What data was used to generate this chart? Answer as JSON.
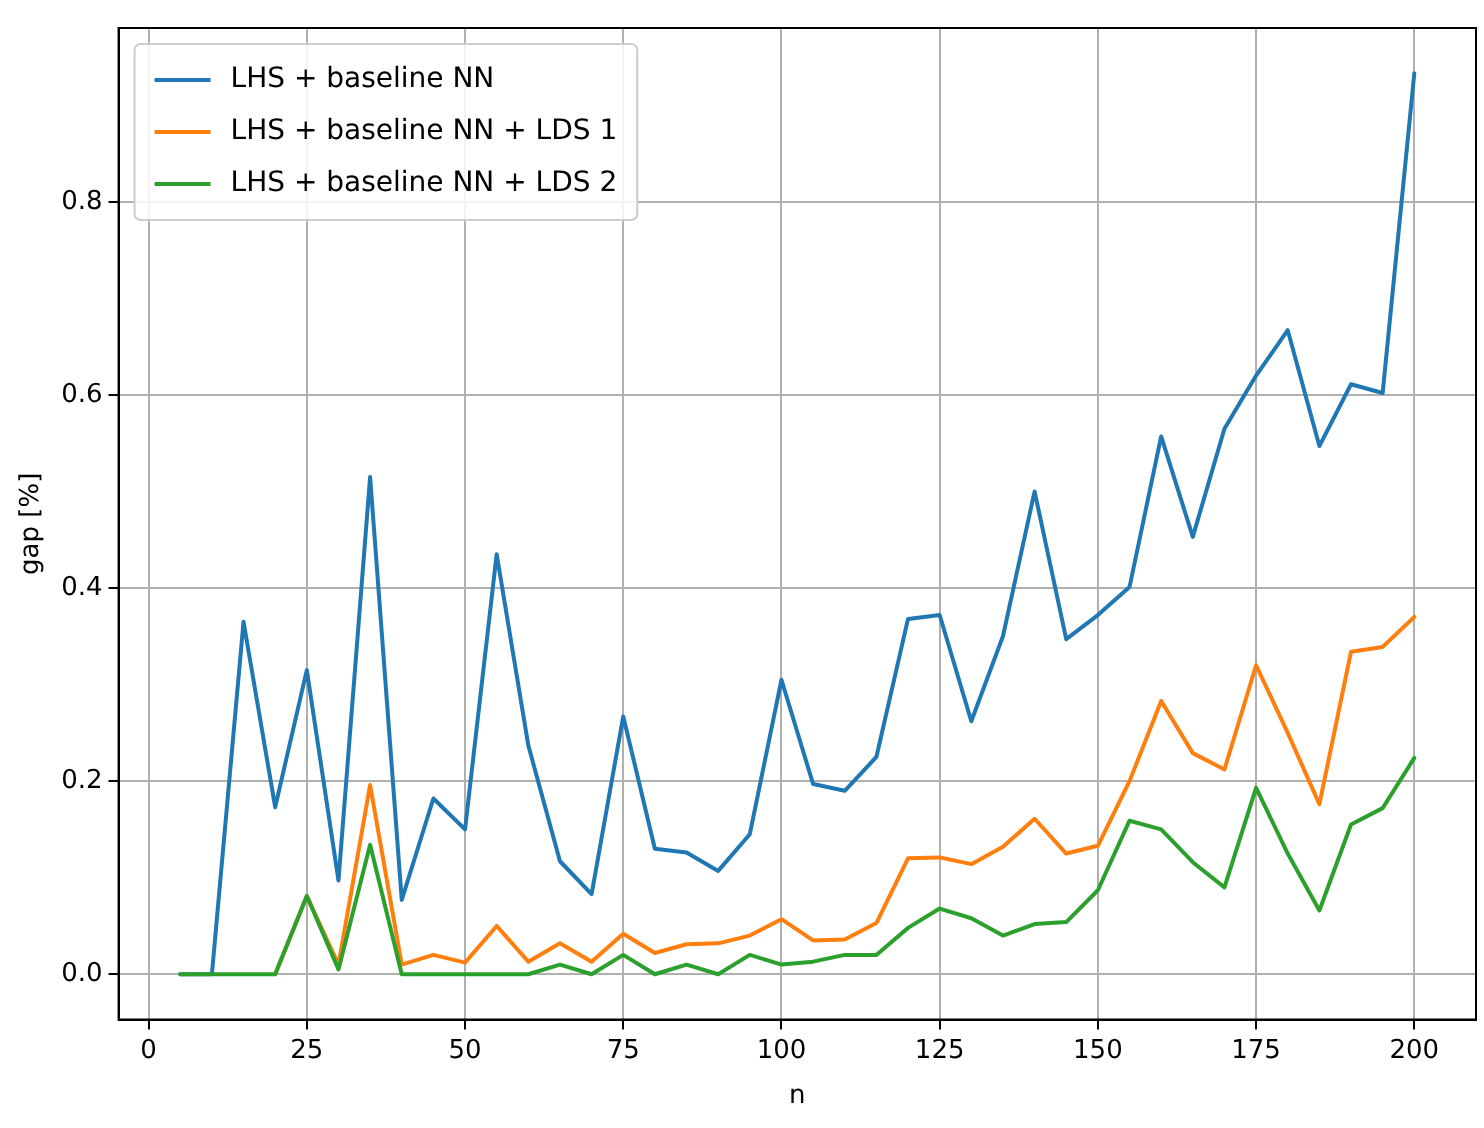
{
  "chart_data": {
    "type": "line",
    "xlabel": "n",
    "ylabel": "gap [%]",
    "x": [
      5,
      10,
      15,
      20,
      25,
      30,
      35,
      40,
      45,
      50,
      55,
      60,
      65,
      70,
      75,
      80,
      85,
      90,
      95,
      100,
      105,
      110,
      115,
      120,
      125,
      130,
      135,
      140,
      145,
      150,
      155,
      160,
      165,
      170,
      175,
      180,
      185,
      190,
      195,
      200
    ],
    "series": [
      {
        "name": "LHS + baseline NN",
        "color": "#1f77b4",
        "values": [
          0,
          0,
          0.365,
          0.173,
          0.315,
          0.097,
          0.515,
          0.077,
          0.182,
          0.15,
          0.435,
          0.237,
          0.117,
          0.083,
          0.267,
          0.13,
          0.126,
          0.107,
          0.145,
          0.305,
          0.197,
          0.19,
          0.225,
          0.368,
          0.372,
          0.262,
          0.35,
          0.5,
          0.347,
          0.372,
          0.401,
          0.557,
          0.453,
          0.565,
          0.62,
          0.667,
          0.547,
          0.611,
          0.602,
          0.933
        ]
      },
      {
        "name": "LHS + baseline NN + LDS 1",
        "color": "#ff7f0e",
        "values": [
          null,
          null,
          null,
          0,
          0.081,
          0.01,
          0.196,
          0.01,
          0.02,
          0.012,
          0.05,
          0.013,
          0.032,
          0.013,
          0.042,
          0.022,
          0.031,
          0.032,
          0.04,
          0.057,
          0.035,
          0.036,
          0.053,
          0.12,
          0.121,
          0.114,
          0.132,
          0.161,
          0.125,
          0.133,
          0.2,
          0.283,
          0.229,
          0.212,
          0.32,
          0.25,
          0.176,
          0.334,
          0.339,
          0.37
        ]
      },
      {
        "name": "LHS + baseline NN + LDS 2",
        "color": "#2ca02c",
        "values": [
          0,
          0,
          0,
          0,
          0.081,
          0.005,
          0.134,
          0,
          0,
          0,
          0,
          0,
          0.01,
          0,
          0.02,
          0,
          0.01,
          0,
          0.02,
          0.01,
          0.013,
          0.02,
          0.02,
          0.048,
          0.068,
          0.058,
          0.04,
          0.052,
          0.054,
          0.087,
          0.159,
          0.15,
          0.116,
          0.09,
          0.193,
          0.125,
          0.066,
          0.155,
          0.172,
          0.224
        ]
      }
    ],
    "xlim": [
      -4.75,
      209.75
    ],
    "xticks": [
      0,
      25,
      50,
      75,
      100,
      125,
      150,
      175,
      200
    ],
    "ylim": [
      -0.047,
      0.98
    ],
    "yticks": [
      {
        "value": 0,
        "label": "0.0"
      },
      {
        "value": 0.2,
        "label": "0.2"
      },
      {
        "value": 0.4,
        "label": "0.4"
      },
      {
        "value": 0.6,
        "label": "0.6"
      },
      {
        "value": 0.8,
        "label": "0.8"
      }
    ],
    "grid": true,
    "legend": "top left",
    "marker": "none",
    "line_style": "solid"
  }
}
